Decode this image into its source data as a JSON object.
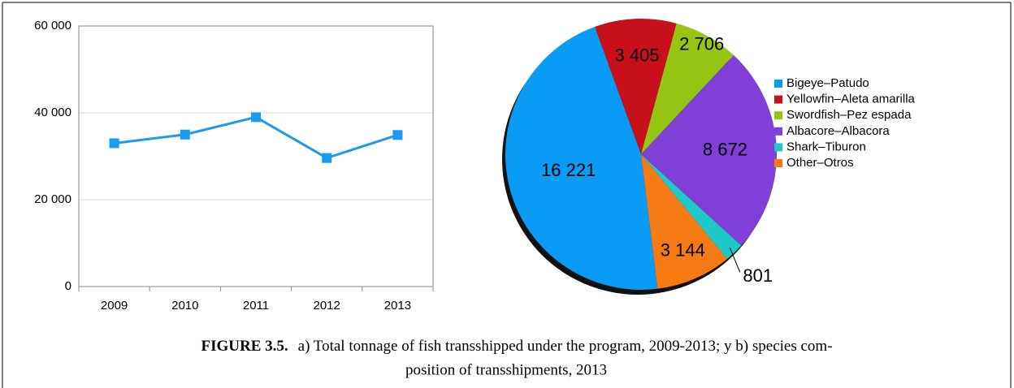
{
  "chart_data": [
    {
      "type": "line",
      "categories": [
        "2009",
        "2010",
        "2011",
        "2012",
        "2013"
      ],
      "series": [
        {
          "name": null,
          "color": "#1a9bf0",
          "values": [
            33000,
            35000,
            39000,
            29600,
            34900
          ]
        }
      ],
      "ylim": [
        0,
        60000
      ],
      "yticks": [
        0,
        {
          "value": 20000,
          "label": "20 000"
        },
        {
          "value": 40000,
          "label": "40 000"
        },
        {
          "value": 60000,
          "label": "60 000"
        }
      ],
      "grid": true
    },
    {
      "type": "pie",
      "categories": [
        "Bigeye–Patudo",
        "Yellowfin–Aleta amarilla",
        "Swordfish–Pez espada",
        "Albacore–Albacora",
        "Shark–Tiburon",
        "Other–Otros"
      ],
      "values": [
        16221,
        3405,
        2706,
        8672,
        801,
        3144
      ],
      "value_labels": [
        "16 221",
        "3 405",
        "2 706",
        "8 672",
        "801",
        "3 144"
      ],
      "colors": [
        "#0a9cf5",
        "#c8101a",
        "#96c514",
        "#8040d8",
        "#1fc8c8",
        "#f57a14"
      ],
      "legend": "right"
    }
  ],
  "caption": {
    "label": "FIGURE 3.5.",
    "lines": [
      "a) Total tonnage of fish transshipped under the program, 2009-2013; y b) species com-",
      "position of transshipments, 2013"
    ]
  }
}
